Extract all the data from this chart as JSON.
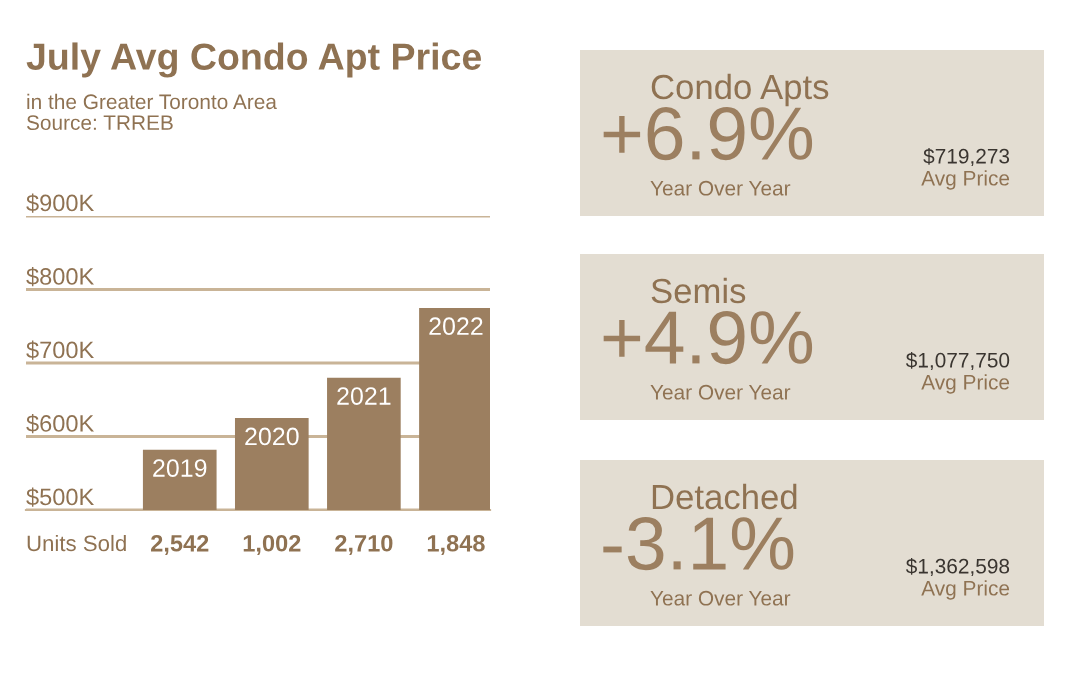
{
  "chart_data": [
    {
      "type": "bar",
      "title": "July Avg Condo Apt Price",
      "subtitle": "in the Greater Toronto Area\nSource: TRREB",
      "categories": [
        "2019",
        "2020",
        "2021",
        "2022"
      ],
      "values": [
        582000,
        625000,
        680000,
        775000
      ],
      "color": "#9c7f60",
      "ylim": [
        500000,
        900000
      ],
      "yticks": [
        {
          "value": 500000,
          "label": "$500K"
        },
        {
          "value": 600000,
          "label": "$600K"
        },
        {
          "value": 700000,
          "label": "$700K"
        },
        {
          "value": 800000,
          "label": "$800K"
        },
        {
          "value": 900000,
          "label": "$900K"
        }
      ],
      "grid": "y",
      "annotations": [
        "Units Sold",
        "2,542",
        "1,002",
        "2,710",
        "1,848"
      ]
    },
    {
      "type": "other",
      "annotations": [
        "Condo Apts",
        "+6.9%",
        "Year Over Year",
        "$719,273",
        "Avg Price",
        "Semis",
        "+4.9%",
        "Year Over Year",
        "$1,077,750",
        "Avg Price",
        "Detached",
        "-3.1%",
        "Year Over Year",
        "$1,362,598",
        "Avg Price"
      ]
    }
  ]
}
